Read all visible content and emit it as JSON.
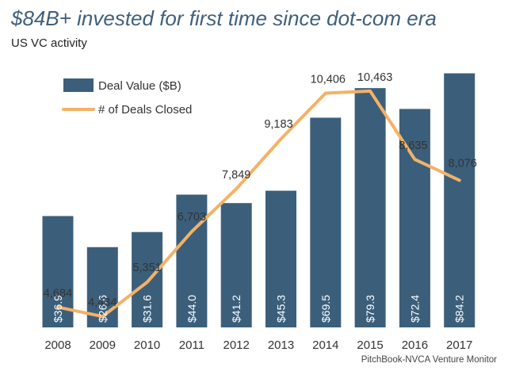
{
  "title": "$84B+ invested for first time since dot-com era",
  "subtitle": "US VC activity",
  "source": "PitchBook-NVCA Venture Monitor",
  "colors": {
    "bar": "#3b5f7b",
    "line": "#f3b266",
    "title": "#3e5f7c"
  },
  "chart_data": {
    "type": "bar",
    "categories": [
      "2008",
      "2009",
      "2010",
      "2011",
      "2012",
      "2013",
      "2014",
      "2015",
      "2016",
      "2017"
    ],
    "series": [
      {
        "name": "Deal Value ($B)",
        "type": "bar",
        "values": [
          36.9,
          26.6,
          31.6,
          44.0,
          41.2,
          45.3,
          69.5,
          79.3,
          72.4,
          84.2
        ],
        "labels": [
          "$36.9",
          "$26.6",
          "$31.6",
          "$44.0",
          "$41.2",
          "$45.3",
          "$69.5",
          "$79.3",
          "$72.4",
          "$84.2"
        ]
      },
      {
        "name": "# of Deals Closed",
        "type": "line",
        "values": [
          4684,
          4434,
          5351,
          6703,
          7849,
          9183,
          10406,
          10463,
          8635,
          8076
        ],
        "labels": [
          "4,684",
          "4,434",
          "5,351",
          "6,703",
          "7,849",
          "9,183",
          "10,406",
          "10,463",
          "8,635",
          "8,076"
        ]
      }
    ],
    "legend": "top-left",
    "grid": false
  }
}
